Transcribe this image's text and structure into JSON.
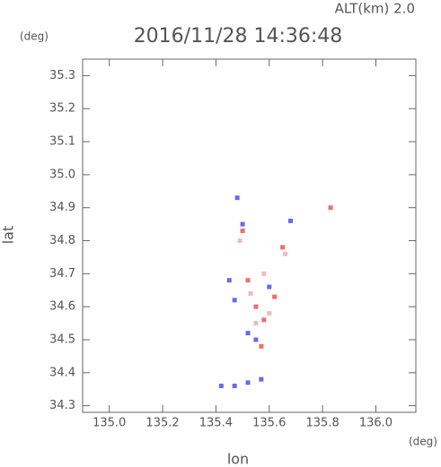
{
  "chart_data": {
    "type": "scatter",
    "title": "2016/11/28 14:36:48",
    "annotation": "ALT(km) 2.0",
    "y_unit": "(deg)",
    "x_unit": "(deg)",
    "xlabel": "lon",
    "ylabel": "lat",
    "xlim": [
      134.9,
      136.15
    ],
    "ylim": [
      34.28,
      35.35
    ],
    "xticks": [
      {
        "value": 135.0,
        "label": "135.0"
      },
      135.2,
      135.4,
      135.6,
      135.8,
      {
        "value": 136.0,
        "label": "136.0"
      }
    ],
    "yticks": [
      34.3,
      34.4,
      34.5,
      34.6,
      34.7,
      34.8,
      34.9,
      {
        "value": 35.0,
        "label": "35.0"
      },
      35.1,
      35.2,
      35.3
    ],
    "series": [
      {
        "color": "#f26d6d",
        "x": [
          135.55,
          135.58,
          135.62,
          135.57,
          135.5,
          135.83,
          135.65,
          135.52
        ],
        "y": [
          34.6,
          34.56,
          34.63,
          34.48,
          34.83,
          34.9,
          34.78,
          34.68
        ]
      },
      {
        "color": "#6a6ae8",
        "x": [
          135.48,
          135.47,
          135.52,
          135.6,
          135.45,
          135.55,
          135.42,
          135.47,
          135.52,
          135.57,
          135.5,
          135.68
        ],
        "y": [
          34.93,
          34.62,
          34.52,
          34.66,
          34.68,
          34.5,
          34.36,
          34.36,
          34.37,
          34.38,
          34.85,
          34.86
        ]
      },
      {
        "color": "#f3b8c8",
        "x": [
          135.55,
          135.6,
          135.53,
          135.58,
          135.49,
          135.66
        ],
        "y": [
          34.55,
          34.58,
          34.64,
          34.7,
          34.8,
          34.76
        ]
      }
    ]
  }
}
